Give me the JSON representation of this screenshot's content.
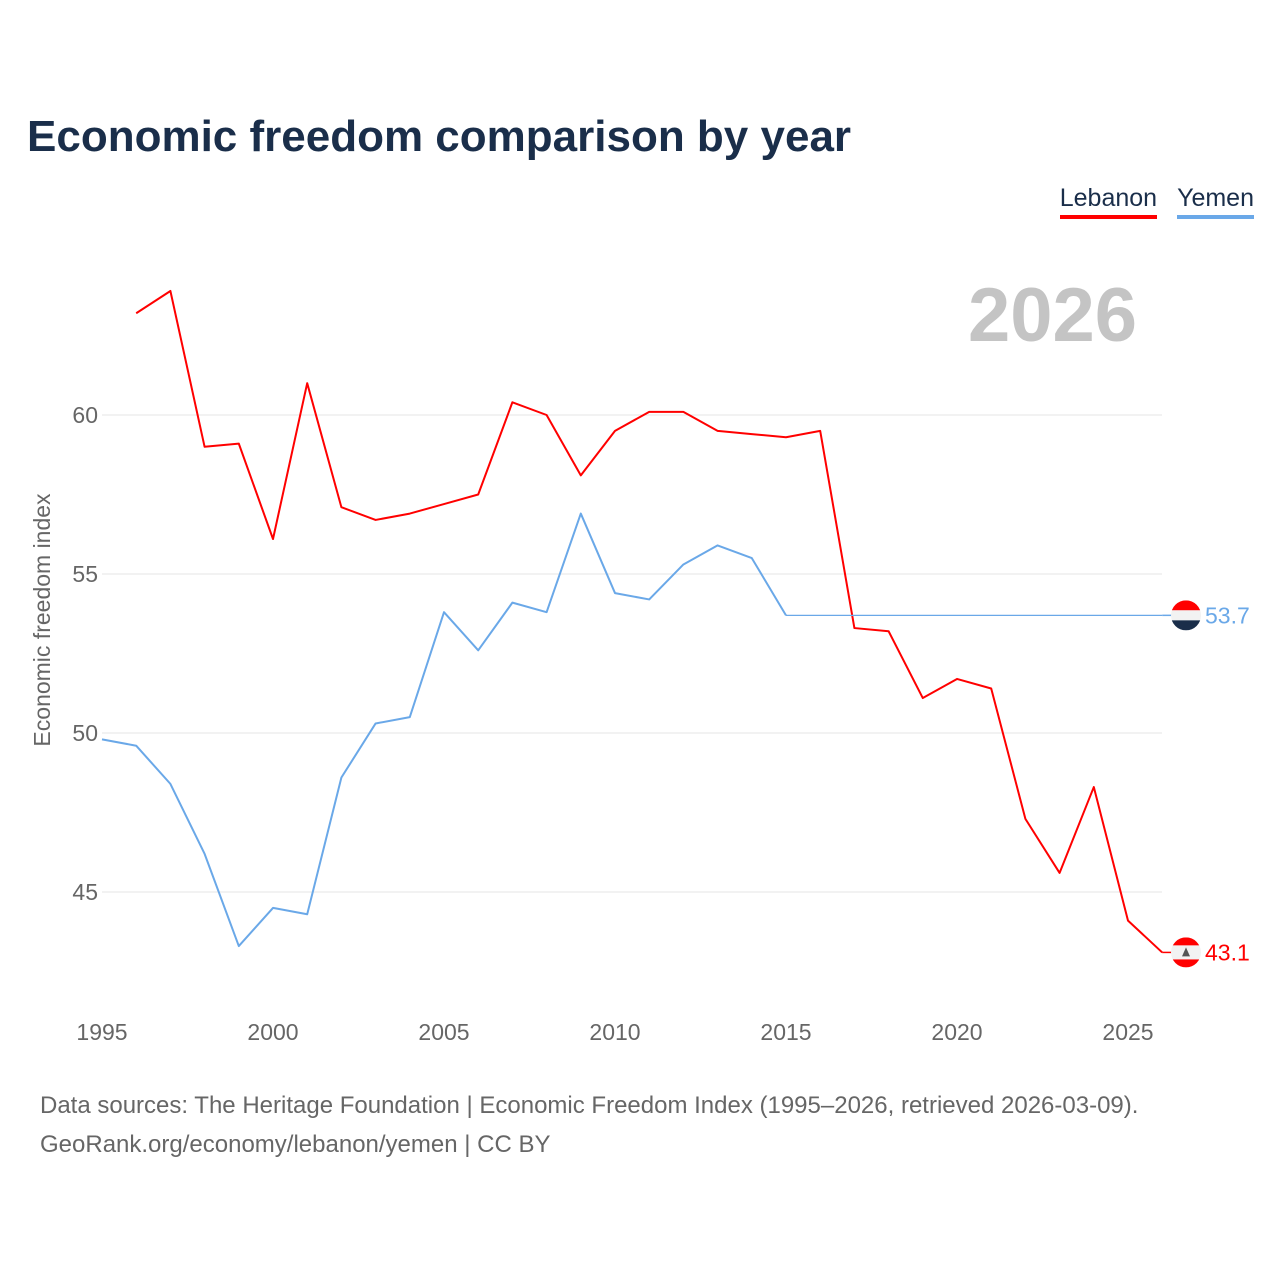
{
  "chart_data": {
    "type": "line",
    "title": "Economic freedom comparison by year",
    "ylabel": "Economic freedom index",
    "xlabel": "",
    "current_year_label": "2026",
    "x": [
      1995,
      1996,
      1997,
      1998,
      1999,
      2000,
      2001,
      2002,
      2003,
      2004,
      2005,
      2006,
      2007,
      2008,
      2009,
      2010,
      2011,
      2012,
      2013,
      2014,
      2015,
      2016,
      2017,
      2018,
      2019,
      2020,
      2021,
      2022,
      2023,
      2024,
      2025,
      2026
    ],
    "xlim": [
      1995,
      2026
    ],
    "ylim": [
      41.6,
      65
    ],
    "xticks": [
      "1995",
      "2000",
      "2005",
      "2010",
      "2015",
      "2020",
      "2025"
    ],
    "yticks": [
      "45",
      "50",
      "55",
      "60"
    ],
    "grid": true,
    "legend_position": "top-right",
    "series": [
      {
        "name": "Lebanon",
        "color": "#ff0000",
        "end_label": "43.1",
        "values": [
          null,
          63.2,
          63.9,
          59.0,
          59.1,
          56.1,
          61.0,
          57.1,
          56.7,
          56.9,
          57.2,
          57.5,
          60.4,
          60.0,
          58.1,
          59.5,
          60.1,
          60.1,
          59.5,
          59.4,
          59.3,
          59.5,
          53.3,
          53.2,
          51.1,
          51.7,
          51.4,
          47.3,
          45.6,
          48.3,
          44.1,
          43.1
        ]
      },
      {
        "name": "Yemen",
        "color": "#6aa8e8",
        "end_label": "53.7",
        "values": [
          49.8,
          49.6,
          48.4,
          46.2,
          43.3,
          44.5,
          44.3,
          48.6,
          50.3,
          50.5,
          53.8,
          52.6,
          54.1,
          53.8,
          56.9,
          54.4,
          54.2,
          55.3,
          55.9,
          55.5,
          53.7,
          null,
          null,
          null,
          null,
          null,
          null,
          null,
          null,
          null,
          null,
          null
        ],
        "carried_forward_value": 53.7
      }
    ]
  },
  "footer": {
    "line1": "Data sources: The Heritage Foundation | Economic Freedom Index (1995–2026, retrieved 2026-03-09).",
    "line2": "GeoRank.org/economy/lebanon/yemen | CC BY"
  }
}
